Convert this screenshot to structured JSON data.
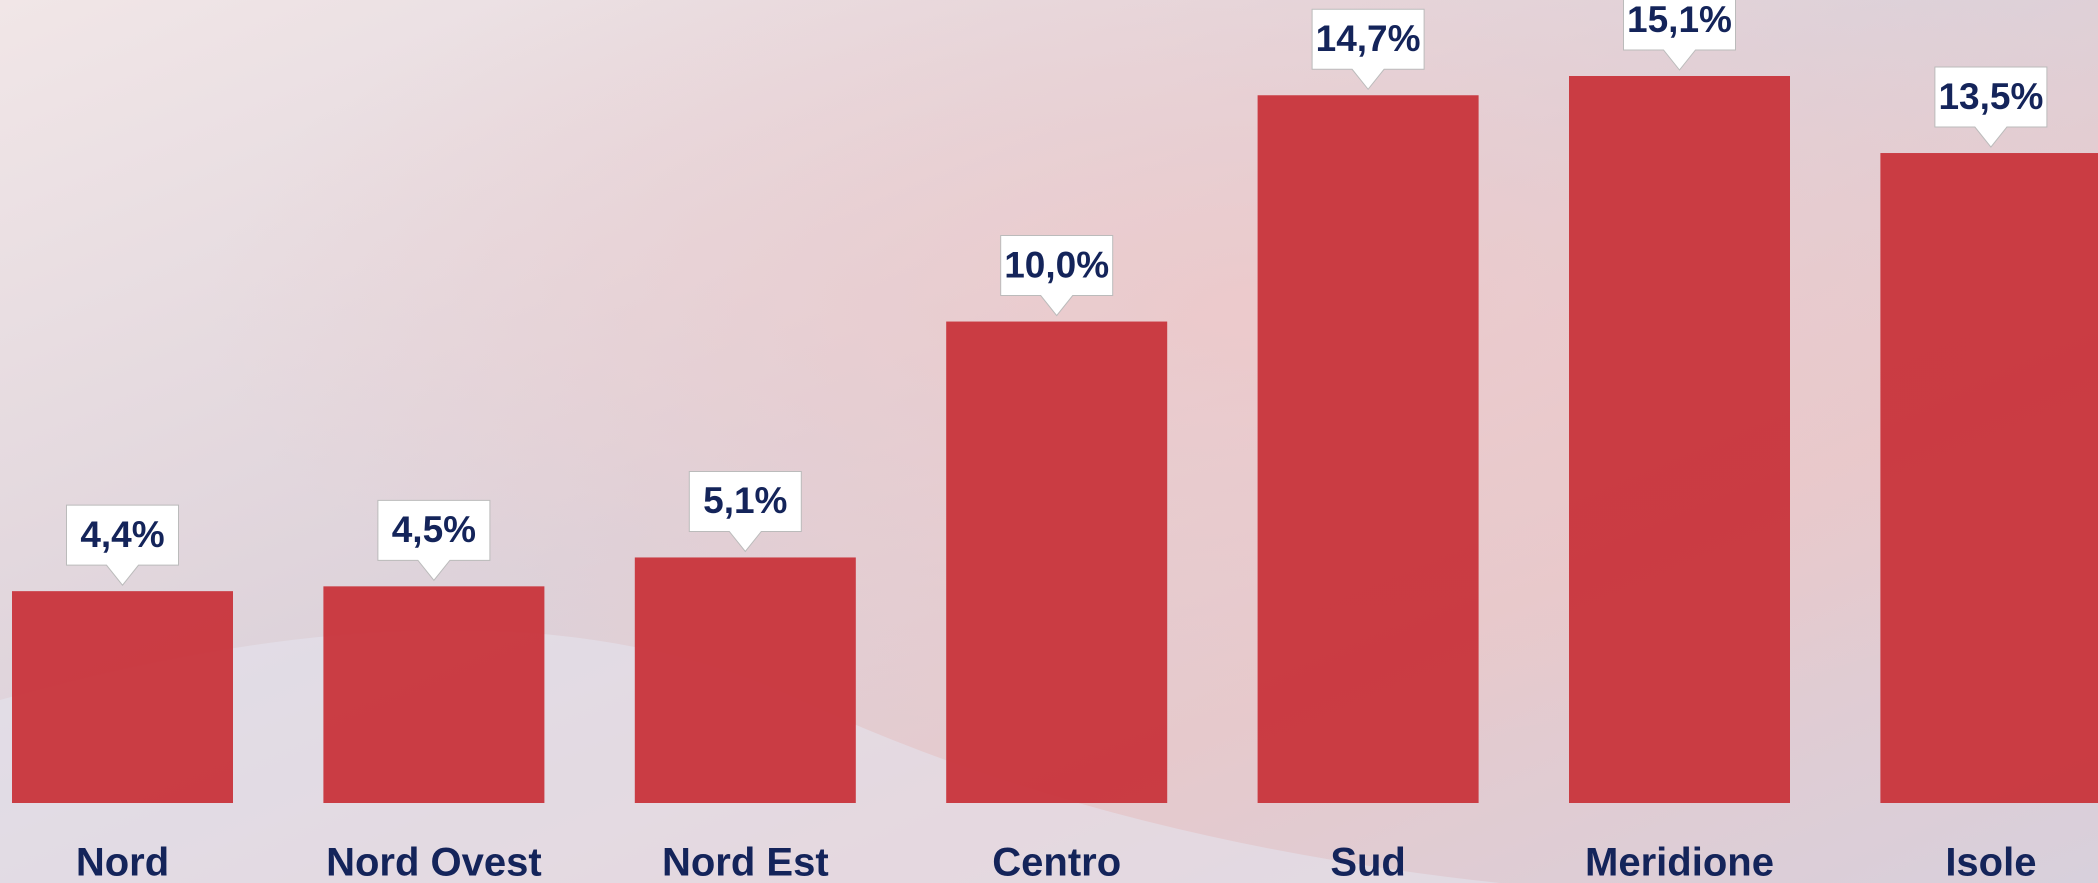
{
  "chart_data": {
    "type": "bar",
    "categories": [
      "Nord",
      "Nord Ovest",
      "Nord Est",
      "Centro",
      "Sud",
      "Meridione",
      "Isole"
    ],
    "values": [
      4.4,
      4.5,
      5.1,
      10.0,
      14.7,
      15.1,
      13.5
    ],
    "value_labels": [
      "4,4%",
      "4,5%",
      "5,1%",
      "10,0%",
      "14,7%",
      "15,1%",
      "13,5%"
    ],
    "color": "#c8343b"
  }
}
